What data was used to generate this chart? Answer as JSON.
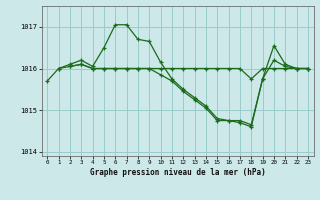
{
  "background_color": "#cce8e8",
  "grid_color": "#99cccc",
  "line_color": "#1a6b1a",
  "marker_color": "#1a6b1a",
  "title": "Graphe pression niveau de la mer (hPa)",
  "xlim": [
    -0.5,
    23.5
  ],
  "ylim": [
    1013.9,
    1017.5
  ],
  "yticks": [
    1014,
    1015,
    1016,
    1017
  ],
  "xticks": [
    0,
    1,
    2,
    3,
    4,
    5,
    6,
    7,
    8,
    9,
    10,
    11,
    12,
    13,
    14,
    15,
    16,
    17,
    18,
    19,
    20,
    21,
    22,
    23
  ],
  "series1_x": [
    0,
    1,
    2,
    3,
    4,
    5,
    6,
    7,
    8,
    9,
    10,
    11,
    12,
    13,
    14,
    15,
    16,
    17,
    18,
    19,
    20,
    21,
    22,
    23
  ],
  "series1_y": [
    1015.7,
    1016.0,
    1016.1,
    1016.2,
    1016.05,
    1016.5,
    1017.05,
    1017.05,
    1016.7,
    1016.65,
    1016.15,
    1015.75,
    1015.5,
    1015.3,
    1015.1,
    1014.8,
    1014.75,
    1014.75,
    1014.65,
    1015.75,
    1016.55,
    1016.1,
    1016.0,
    1016.0
  ],
  "series2_x": [
    1,
    2,
    3,
    4,
    5,
    6,
    7,
    8,
    9,
    10,
    11,
    12,
    13,
    14,
    15,
    16,
    17,
    18,
    19,
    20,
    21,
    22,
    23
  ],
  "series2_y": [
    1016.0,
    1016.05,
    1016.1,
    1016.0,
    1016.0,
    1016.0,
    1016.0,
    1016.0,
    1016.0,
    1016.0,
    1016.0,
    1016.0,
    1016.0,
    1016.0,
    1016.0,
    1016.0,
    1016.0,
    1015.75,
    1016.0,
    1016.0,
    1016.0,
    1016.0,
    1016.0
  ],
  "series3_x": [
    2,
    3,
    4,
    5,
    6,
    7,
    8,
    9,
    10,
    11,
    12,
    13,
    14,
    15,
    16,
    17,
    18,
    19,
    20,
    21,
    22,
    23
  ],
  "series3_y": [
    1016.05,
    1016.1,
    1016.0,
    1016.0,
    1016.0,
    1016.0,
    1016.0,
    1016.0,
    1015.85,
    1015.7,
    1015.45,
    1015.25,
    1015.05,
    1014.75,
    1014.75,
    1014.7,
    1014.6,
    1015.75,
    1016.2,
    1016.05,
    1016.0,
    1016.0
  ]
}
